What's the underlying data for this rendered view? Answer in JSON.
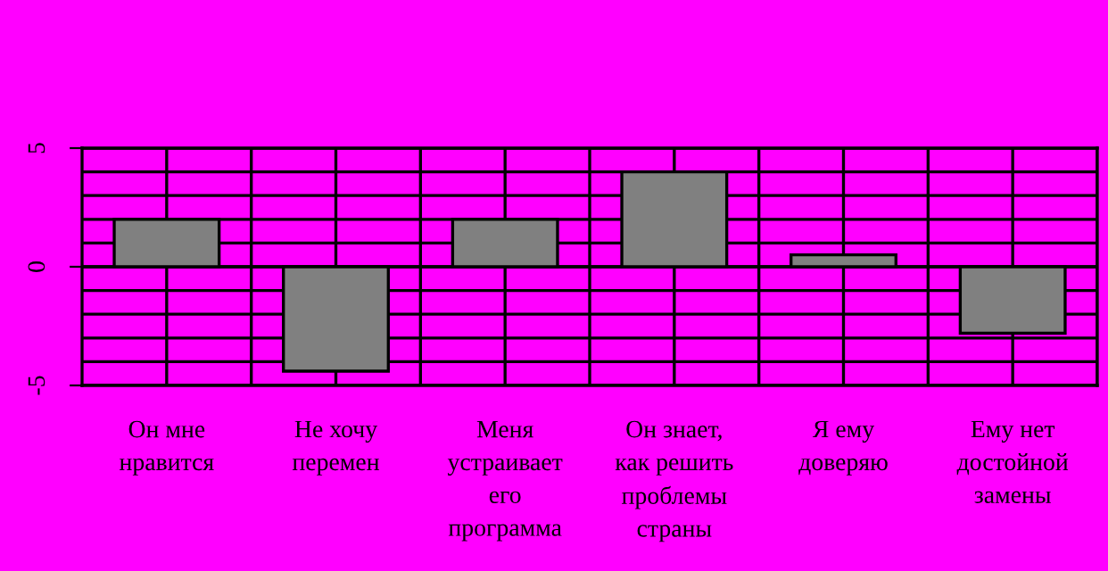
{
  "chart_data": {
    "type": "bar",
    "categories": [
      "Он мне\nнравится",
      "Не хочу\nперемен",
      "Меня\nустраивает\nего\nпрограмма",
      "Он знает,\nкак решить\nпроблемы\nстраны",
      "Я ему\nдоверяю",
      "Ему нет\nдостойной\nзамены"
    ],
    "values": [
      2,
      -4.4,
      2,
      4,
      0.5,
      -2.8
    ],
    "color": "#808080",
    "ylim": [
      -5,
      5
    ],
    "yticks": [
      {
        "value": -5,
        "label": "-5"
      },
      0,
      5
    ],
    "grid": true
  }
}
